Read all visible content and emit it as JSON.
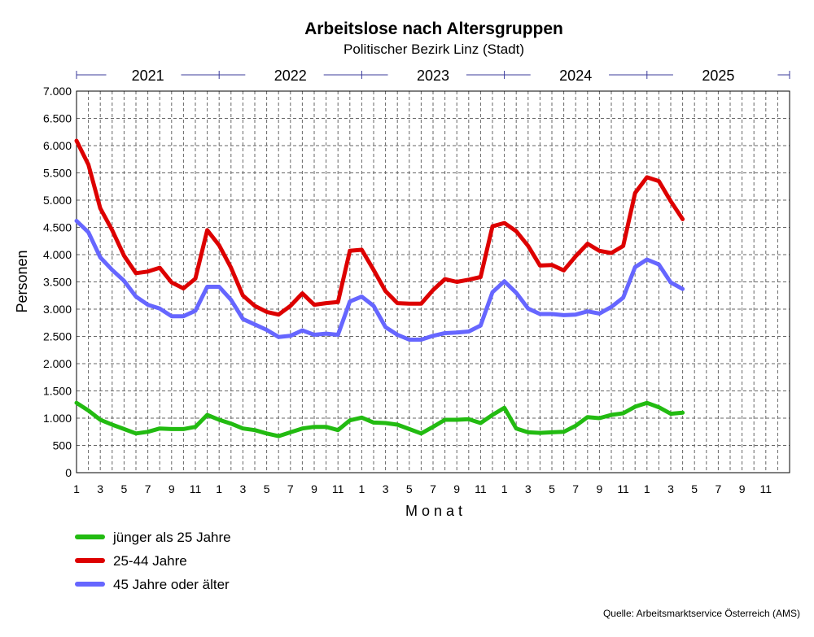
{
  "chart_data": {
    "type": "line",
    "title": "Arbeitslose nach Altersgruppen",
    "subtitle": "Politischer Bezirk Linz (Stadt)",
    "xlabel": "M o n a t",
    "ylabel": "Personen",
    "source": "Quelle: Arbeitsmarktservice Österreich (AMS)",
    "years": [
      "2021",
      "2022",
      "2023",
      "2024",
      "2025"
    ],
    "x_tick_labels": [
      "1",
      "3",
      "5",
      "7",
      "9",
      "11"
    ],
    "ylim": [
      0,
      7000
    ],
    "y_ticks": [
      0,
      500,
      1000,
      1500,
      2000,
      2500,
      3000,
      3500,
      4000,
      4500,
      5000,
      5500,
      6000,
      6500,
      7000
    ],
    "y_tick_labels": [
      "0",
      "500",
      "1.000",
      "1.500",
      "2.000",
      "2.500",
      "3.000",
      "3.500",
      "4.000",
      "4.500",
      "5.000",
      "5.500",
      "6.000",
      "6.500",
      "7.000"
    ],
    "grid": true,
    "legend_position": "bottom-left",
    "x_range_months": 60,
    "series": [
      {
        "name": "jünger als 25 Jahre",
        "color": "#22bb11",
        "values": [
          1280,
          1140,
          970,
          880,
          800,
          720,
          750,
          810,
          800,
          800,
          840,
          1060,
          970,
          900,
          810,
          780,
          720,
          670,
          740,
          810,
          840,
          840,
          780,
          960,
          1010,
          920,
          910,
          880,
          800,
          720,
          840,
          970,
          970,
          980,
          910,
          1060,
          1190,
          810,
          740,
          730,
          740,
          750,
          860,
          1020,
          1000,
          1060,
          1090,
          1210,
          1280,
          1200,
          1080,
          1100
        ]
      },
      {
        "name": "25-44 Jahre",
        "color": "#dd0000",
        "values": [
          6090,
          5650,
          4850,
          4450,
          3980,
          3660,
          3690,
          3760,
          3490,
          3380,
          3560,
          4450,
          4170,
          3760,
          3250,
          3060,
          2950,
          2900,
          3060,
          3290,
          3080,
          3110,
          3130,
          4070,
          4090,
          3720,
          3330,
          3110,
          3100,
          3100,
          3350,
          3550,
          3500,
          3540,
          3590,
          4520,
          4580,
          4430,
          4160,
          3800,
          3810,
          3710,
          3970,
          4200,
          4070,
          4030,
          4160,
          5130,
          5420,
          5350,
          4980,
          4650
        ]
      },
      {
        "name": "45 Jahre oder älter",
        "color": "#6666ff",
        "values": [
          4620,
          4410,
          3950,
          3720,
          3520,
          3230,
          3080,
          3010,
          2870,
          2870,
          2970,
          3410,
          3410,
          3170,
          2820,
          2720,
          2620,
          2490,
          2510,
          2610,
          2530,
          2550,
          2530,
          3140,
          3230,
          3060,
          2670,
          2530,
          2440,
          2440,
          2510,
          2560,
          2570,
          2590,
          2700,
          3310,
          3510,
          3300,
          3010,
          2910,
          2910,
          2890,
          2900,
          2960,
          2920,
          3040,
          3210,
          3770,
          3910,
          3820,
          3490,
          3370
        ]
      }
    ]
  }
}
